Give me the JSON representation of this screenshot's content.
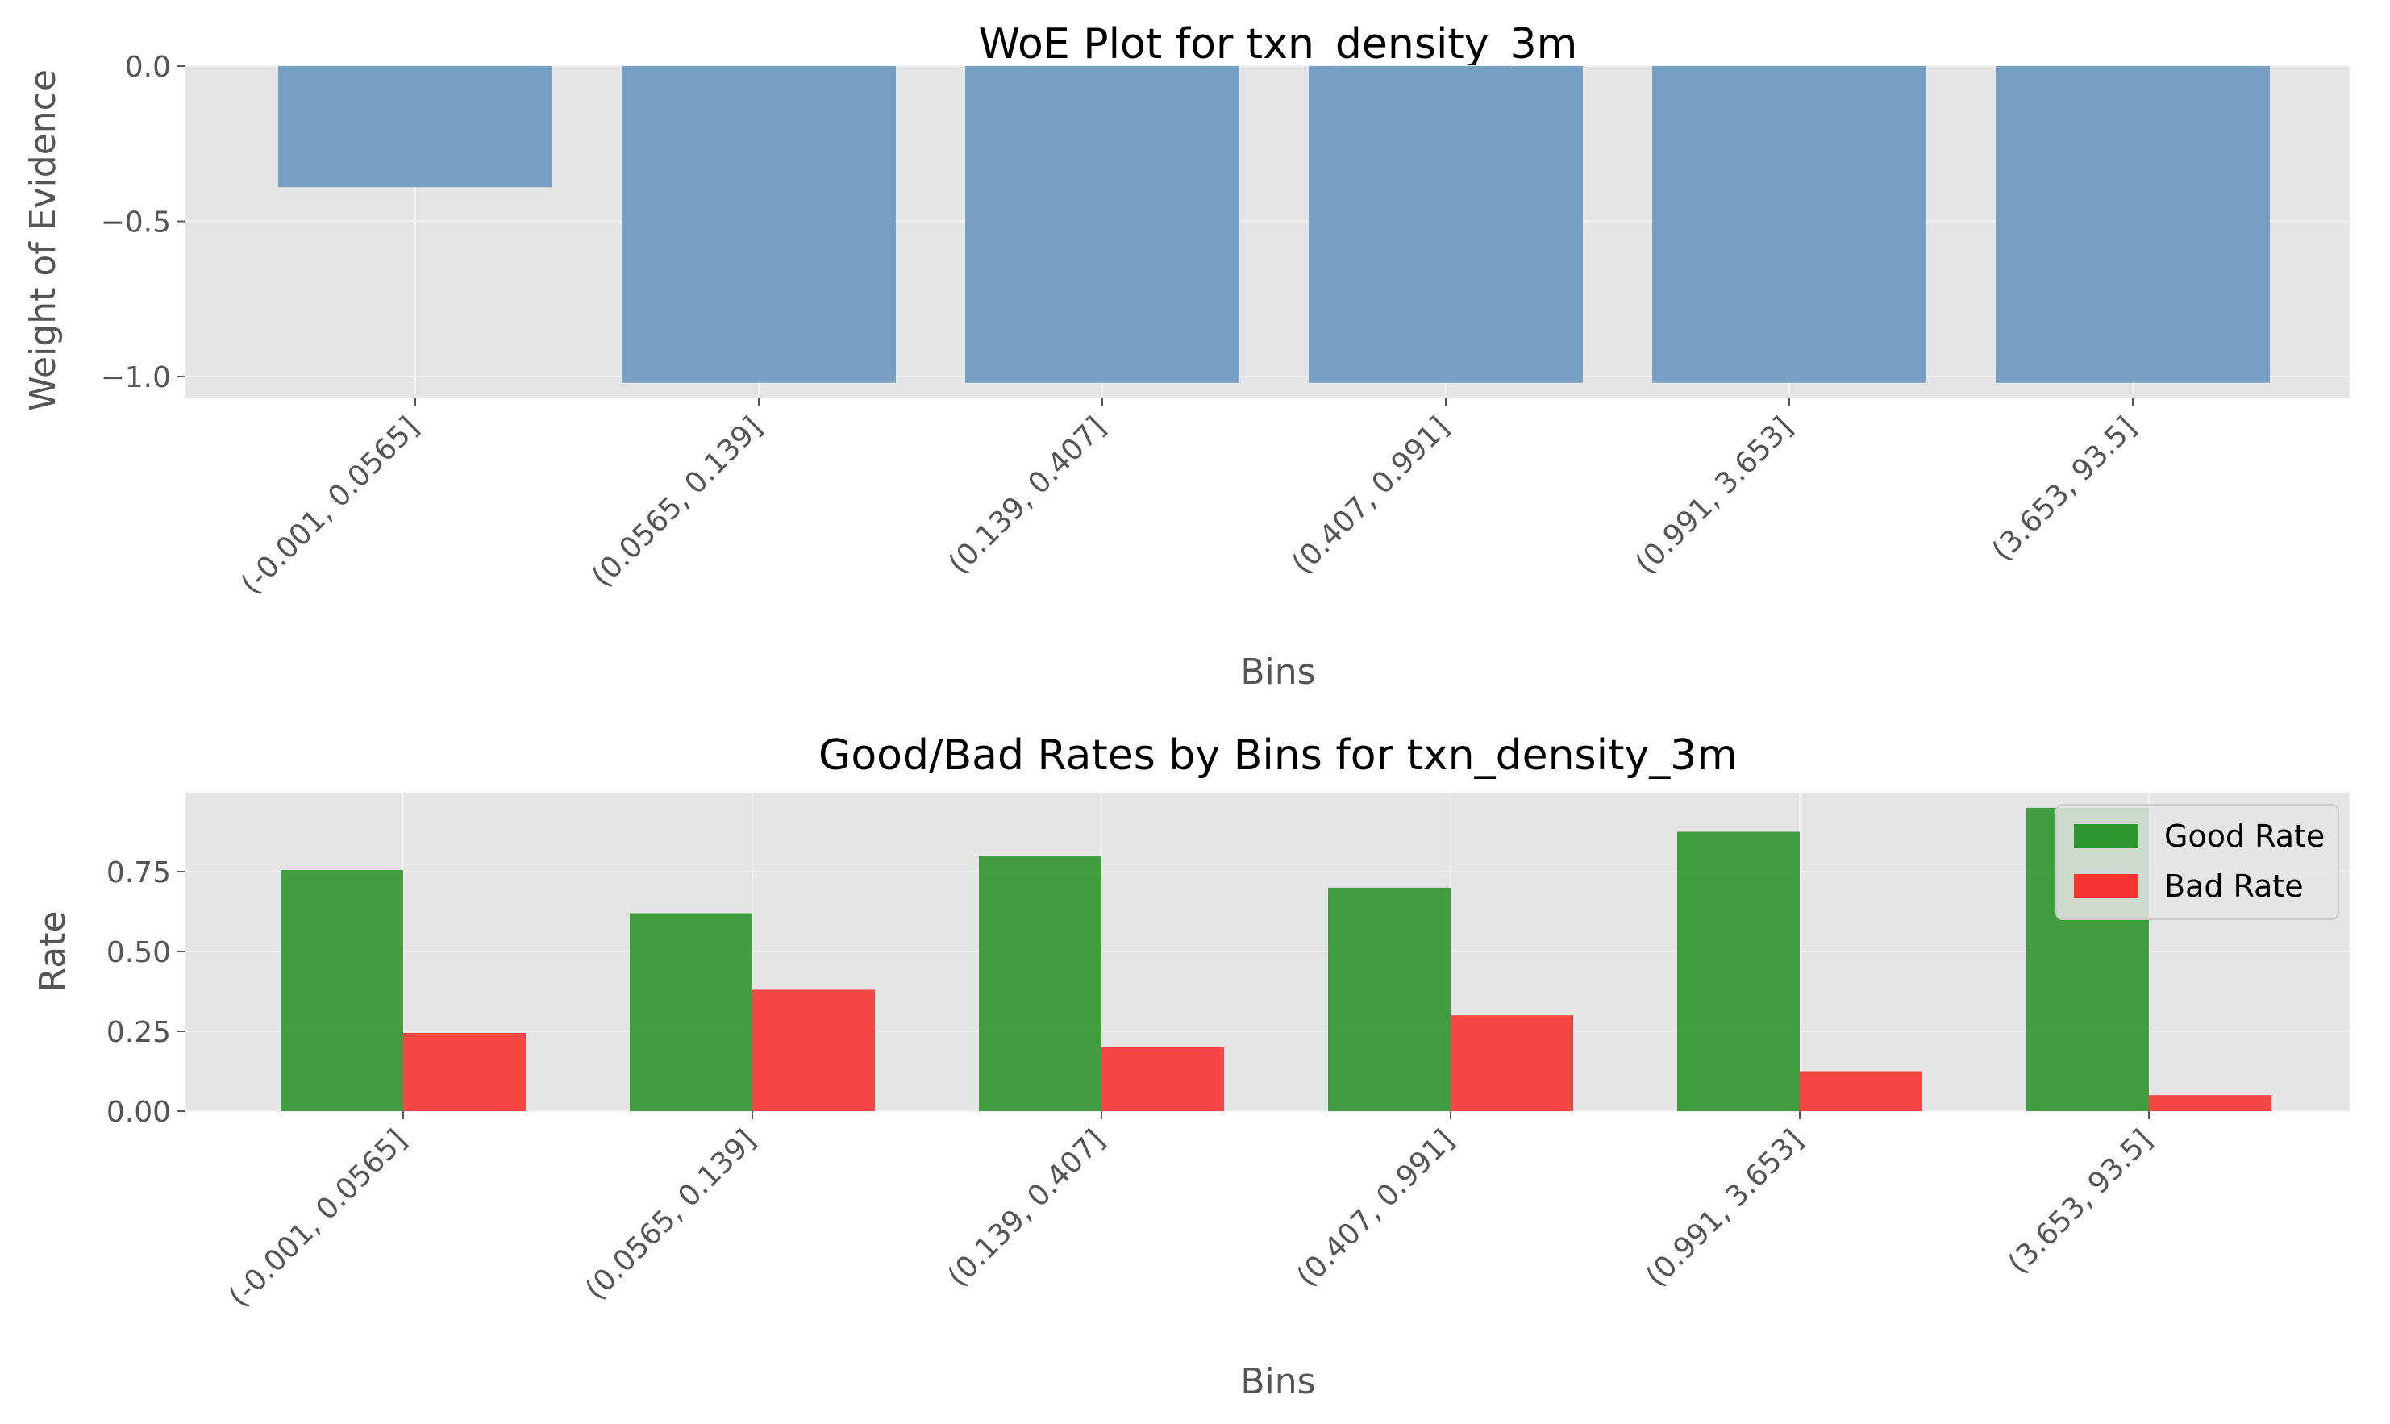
{
  "colors": {
    "background": "#e5e5e5",
    "grid": "#f2f2f2",
    "woe_bar": "#6b98c0",
    "good_bar": "#2e962e",
    "bad_bar": "#f73333",
    "text": "#555555",
    "title": "#000000"
  },
  "chart_data": [
    {
      "type": "bar",
      "title": "WoE Plot for txn_density_3m",
      "xlabel": "Bins",
      "ylabel": "Weight of Evidence",
      "categories": [
        "(-0.001, 0.0565]",
        "(0.0565, 0.139]",
        "(0.139, 0.407]",
        "(0.407, 0.991]",
        "(0.991, 3.653]",
        "(3.653, 93.5]"
      ],
      "values": [
        -0.39,
        -1.02,
        -1.02,
        -1.02,
        -1.02,
        -1.02
      ],
      "ylim": [
        -1.07,
        0.0
      ],
      "yticks": [
        "0.0",
        "−0.5",
        "−1.0"
      ],
      "ytick_values": [
        0.0,
        -0.5,
        -1.0
      ],
      "grid": true
    },
    {
      "type": "bar",
      "title": "Good/Bad Rates by Bins for txn_density_3m",
      "xlabel": "Bins",
      "ylabel": "Rate",
      "categories": [
        "(-0.001, 0.0565]",
        "(0.0565, 0.139]",
        "(0.139, 0.407]",
        "(0.407, 0.991]",
        "(0.991, 3.653]",
        "(3.653, 93.5]"
      ],
      "series": [
        {
          "name": "Good Rate",
          "values": [
            0.755,
            0.62,
            0.8,
            0.7,
            0.875,
            0.95
          ]
        },
        {
          "name": "Bad Rate",
          "values": [
            0.245,
            0.38,
            0.2,
            0.3,
            0.125,
            0.05
          ]
        }
      ],
      "ylim": [
        0.0,
        0.9975
      ],
      "yticks": [
        "0.00",
        "0.25",
        "0.50",
        "0.75"
      ],
      "ytick_values": [
        0.0,
        0.25,
        0.5,
        0.75
      ],
      "legend": "top-right",
      "grid": true
    }
  ]
}
